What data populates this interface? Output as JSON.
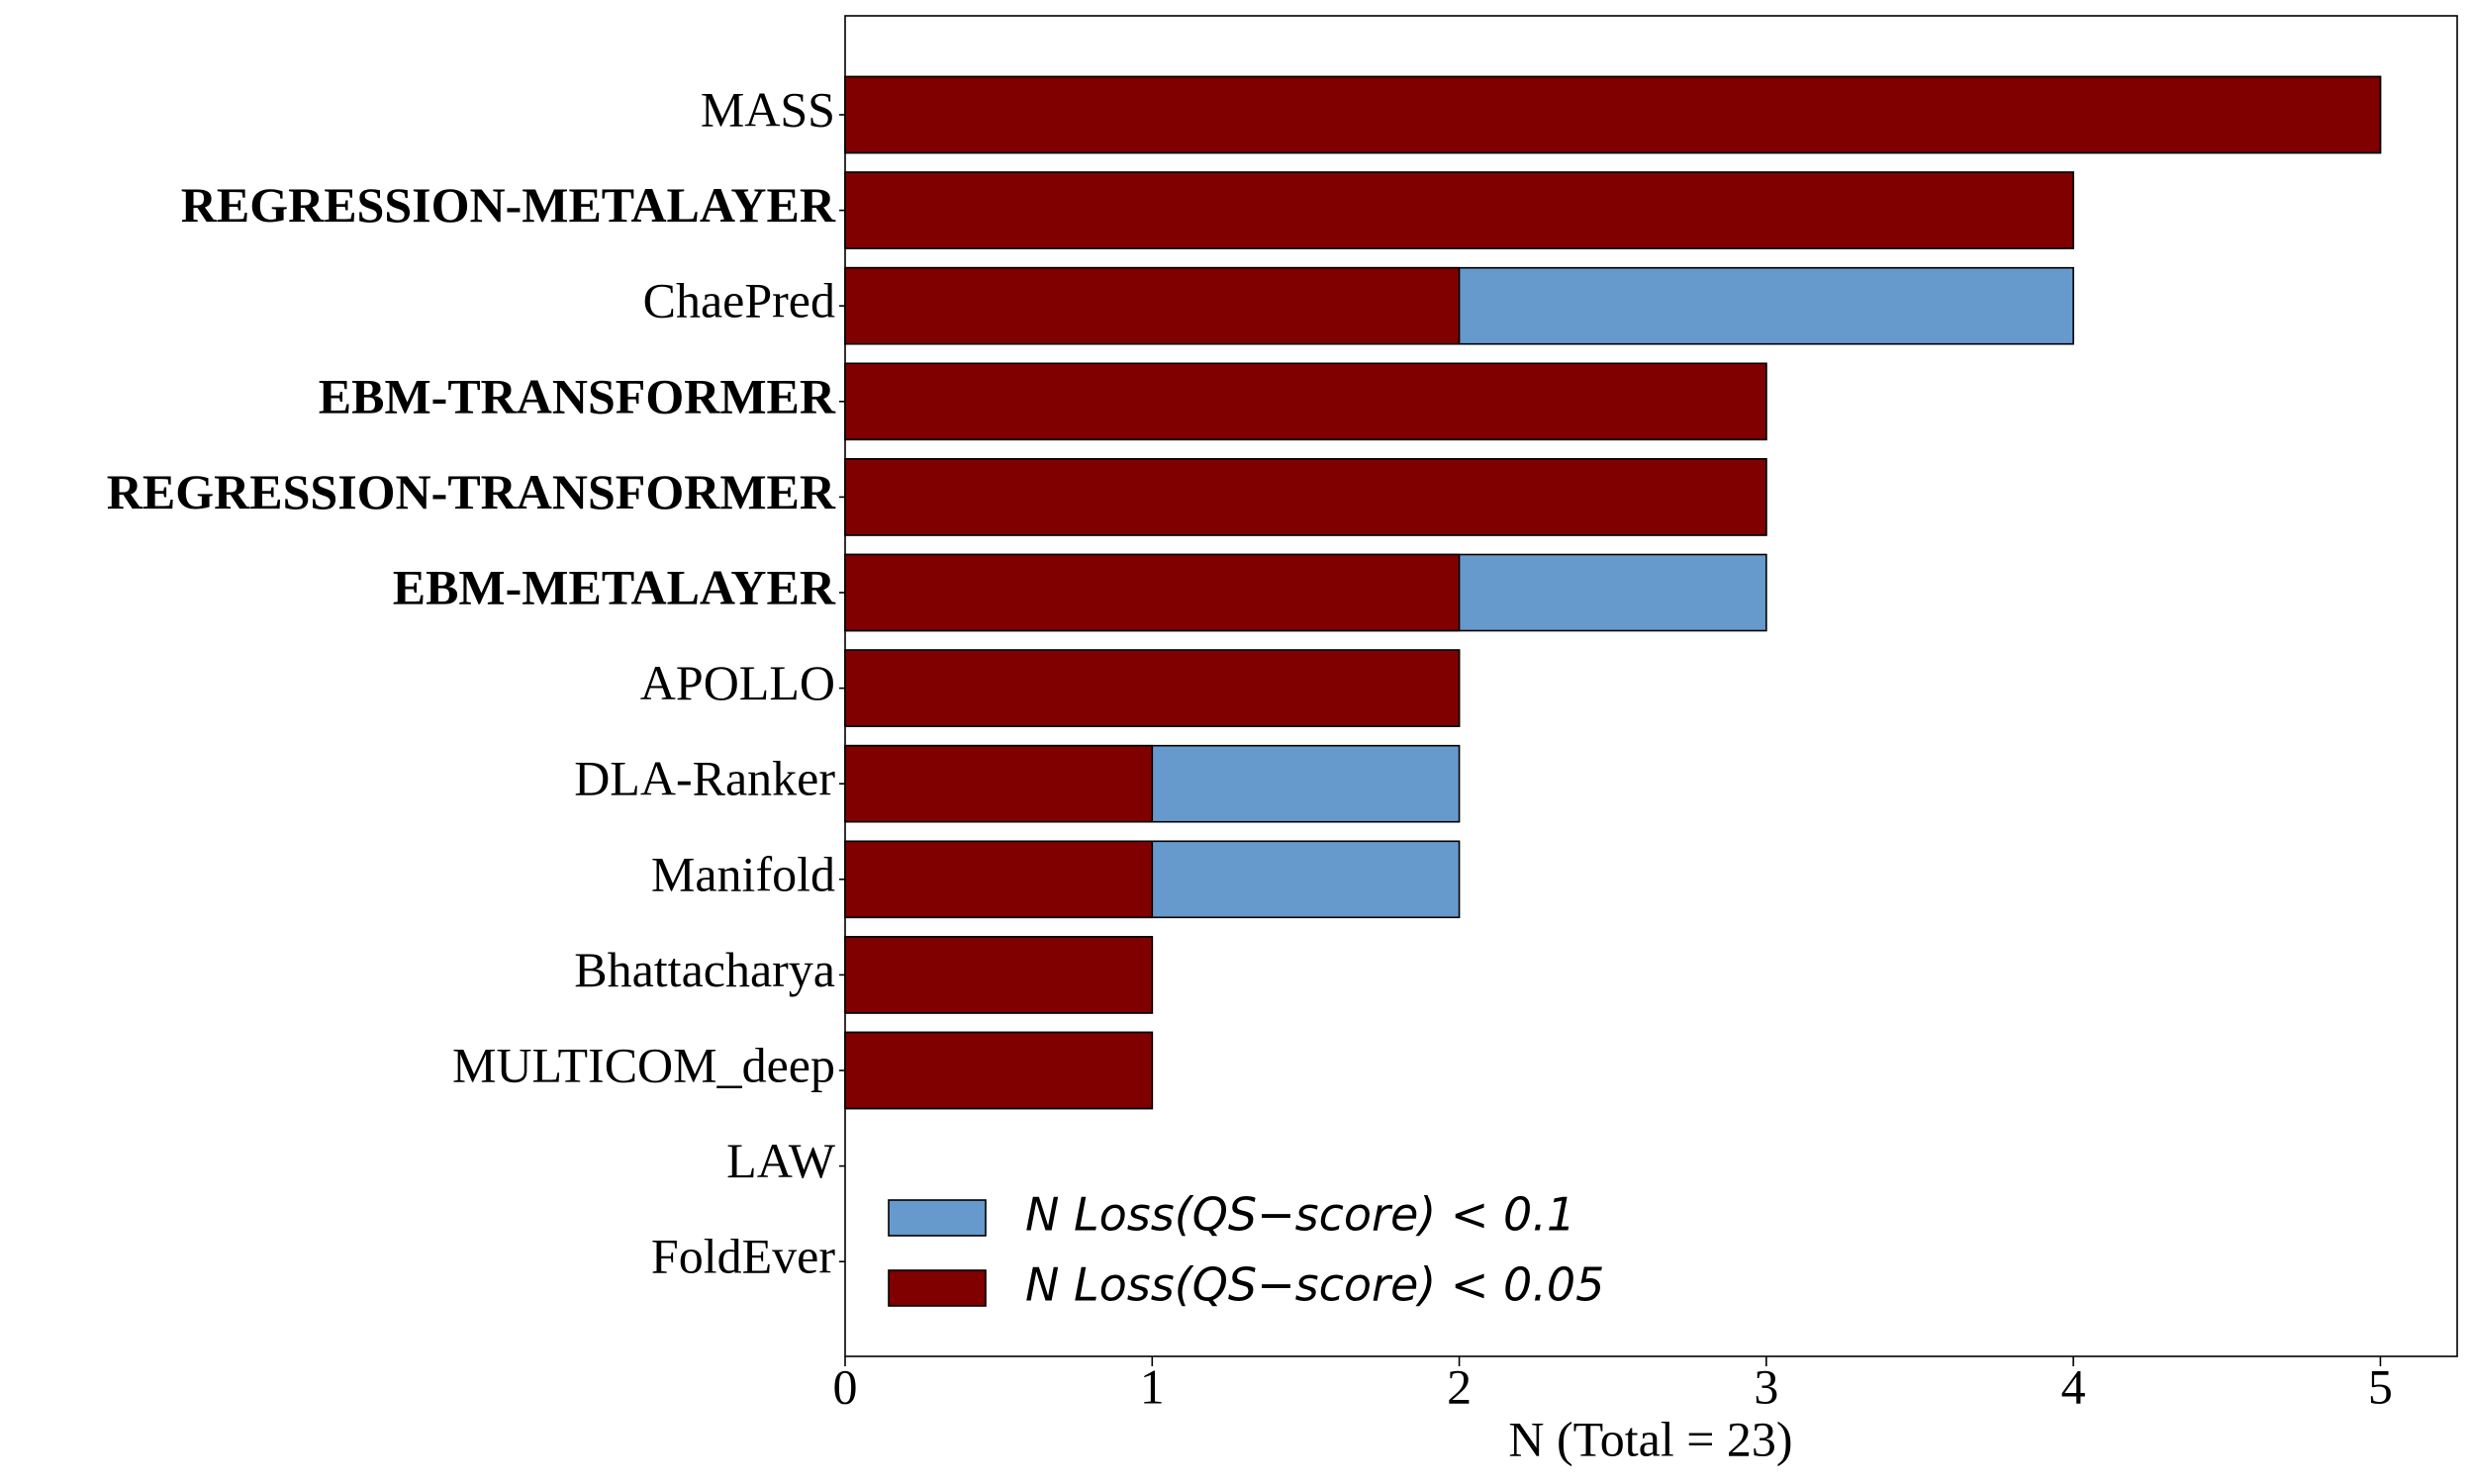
{
  "chart_data": {
    "type": "bar",
    "orientation": "horizontal",
    "overlap": true,
    "categories": [
      "MASS",
      "REGRESSION-METALAYER",
      "ChaePred",
      "EBM-TRANSFORMER",
      "REGRESSION-TRANSFORMER",
      "EBM-METALAYER",
      "APOLLO",
      "DLA-Ranker",
      "Manifold",
      "Bhattacharya",
      "MULTICOM_deep",
      "LAW",
      "FoldEver"
    ],
    "bold": [
      false,
      true,
      false,
      true,
      true,
      true,
      false,
      false,
      false,
      false,
      false,
      false,
      false
    ],
    "series": [
      {
        "name": "N Loss(QS−score) < 0.1",
        "color": "#6699cc",
        "values": [
          5,
          4,
          4,
          3,
          3,
          3,
          2,
          2,
          2,
          1,
          1,
          0,
          0
        ]
      },
      {
        "name": "N Loss(QS−score) < 0.05",
        "color": "#800000",
        "values": [
          5,
          4,
          2,
          3,
          3,
          2,
          2,
          1,
          1,
          1,
          1,
          0,
          0
        ]
      }
    ],
    "x_label": "N (Total = 23)",
    "xlim": [
      0,
      5.25
    ],
    "xticks": [
      0,
      1,
      2,
      3,
      4,
      5
    ],
    "legend": "lower left",
    "grid": false
  }
}
